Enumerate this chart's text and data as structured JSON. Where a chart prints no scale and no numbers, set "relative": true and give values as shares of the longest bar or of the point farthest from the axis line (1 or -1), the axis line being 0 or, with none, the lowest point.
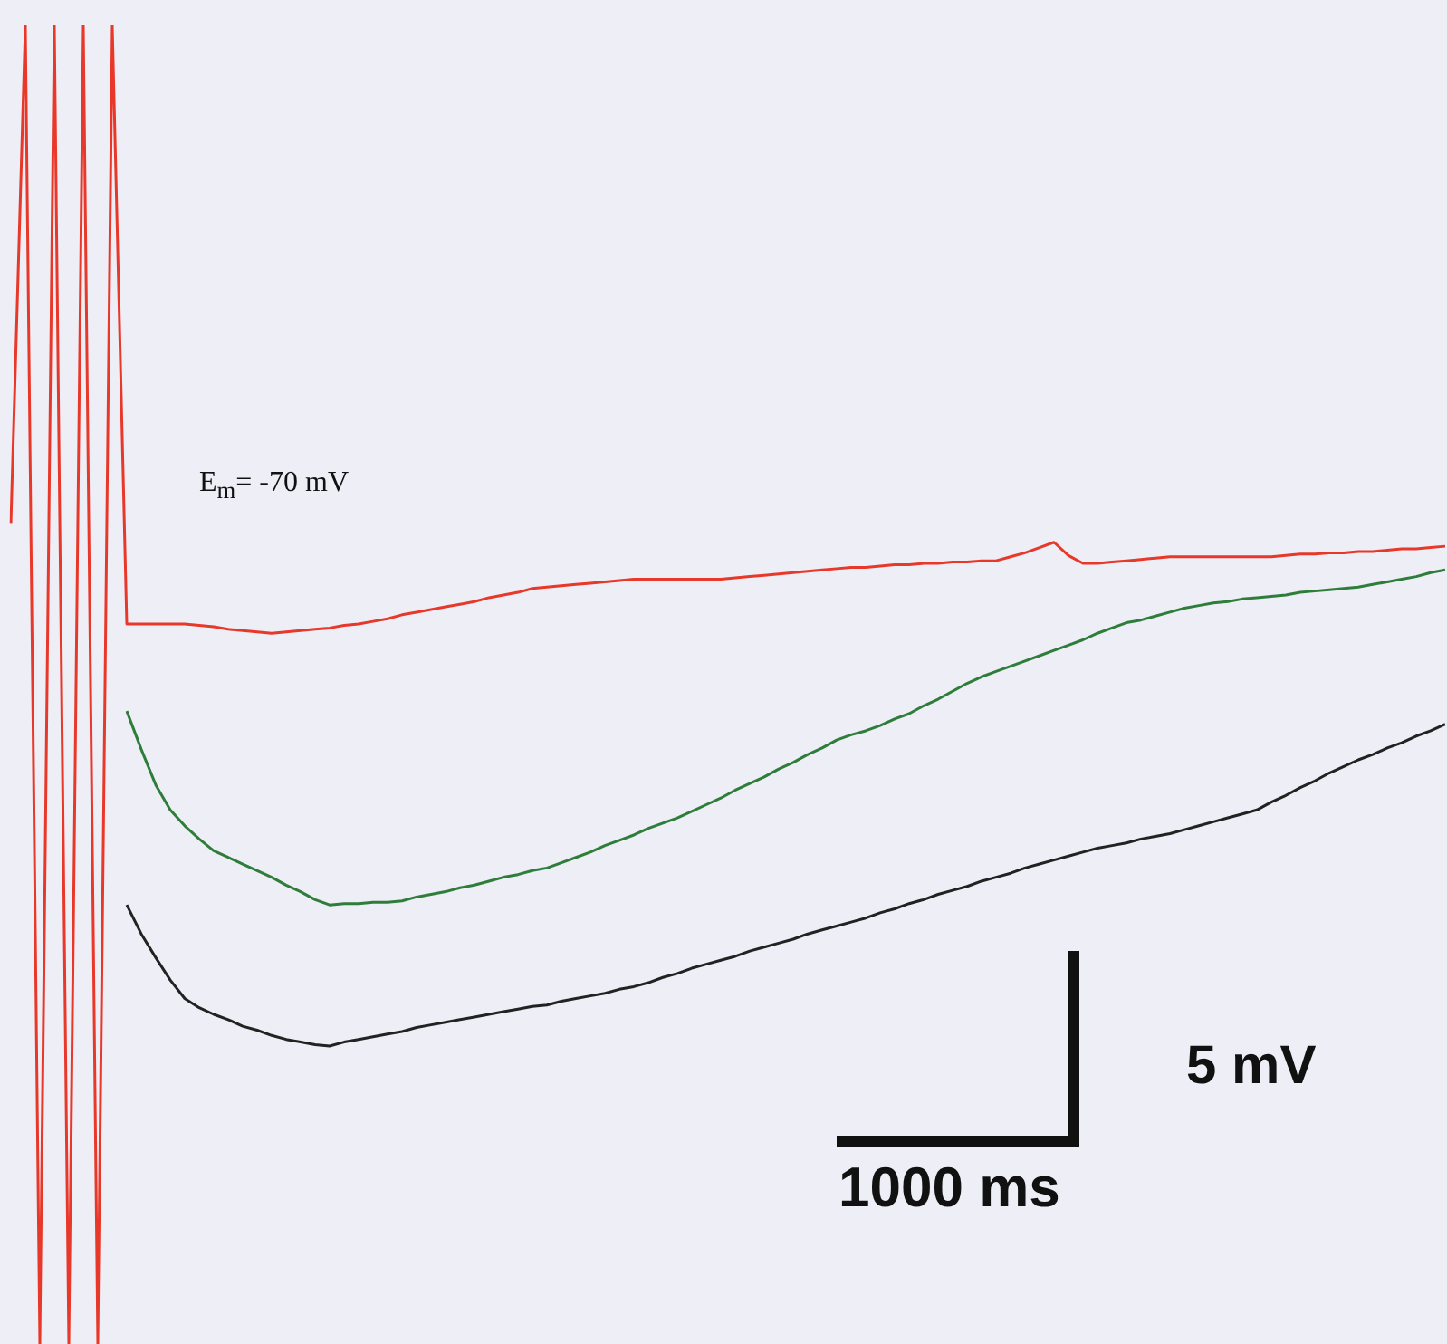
{
  "chart_data": {
    "type": "line",
    "relative": true,
    "marker": "none",
    "line_style": "solid",
    "categories": [
      null,
      null,
      null,
      null,
      null,
      null,
      null,
      null,
      null,
      null,
      null,
      null,
      null,
      null,
      null,
      null,
      null,
      null,
      null,
      null,
      null,
      null,
      null,
      null,
      null,
      null,
      null,
      null,
      null,
      null,
      null,
      null,
      null,
      null,
      null,
      null,
      null,
      null,
      null,
      null,
      null,
      null,
      null,
      null,
      null,
      null,
      null,
      null,
      null,
      null,
      null,
      null,
      null,
      null,
      null,
      null,
      null,
      null,
      null,
      null,
      null,
      null,
      null,
      null,
      null,
      null,
      null,
      null,
      null,
      null,
      null,
      null,
      null,
      null,
      null,
      null,
      null,
      null,
      null,
      null,
      null,
      null,
      null,
      null,
      null,
      null,
      null,
      null,
      null,
      null,
      null,
      null,
      null,
      null,
      null,
      null,
      null,
      null,
      null,
      null
    ],
    "annotations": [
      "E$_{m}$= -70 mV",
      "5 mV",
      "1000 ms"
    ],
    "series": [
      {
        "color": "#e8382a",
        "values": [
          0.622,
          1,
          0,
          1,
          0,
          1,
          0,
          1,
          0.546,
          0.546,
          0.546,
          0.546,
          0.546,
          0.545,
          0.544,
          0.542,
          0.541,
          0.54,
          0.539,
          0.54,
          0.541,
          0.542,
          0.543,
          0.545,
          0.546,
          0.548,
          0.55,
          0.553,
          0.555,
          0.557,
          0.559,
          0.561,
          0.563,
          0.566,
          0.568,
          0.57,
          0.573,
          0.574,
          0.575,
          0.576,
          0.577,
          0.578,
          0.579,
          0.58,
          0.58,
          0.58,
          0.58,
          0.58,
          0.58,
          0.58,
          0.581,
          0.582,
          0.583,
          0.584,
          0.585,
          0.586,
          0.587,
          0.588,
          0.589,
          0.589,
          0.59,
          0.591,
          0.591,
          0.592,
          0.592,
          0.593,
          0.593,
          0.594,
          0.594,
          0.597,
          0.6,
          0.604,
          0.608,
          0.598,
          0.592,
          0.592,
          0.593,
          0.594,
          0.595,
          0.596,
          0.597,
          0.597,
          0.597,
          0.597,
          0.597,
          0.597,
          0.597,
          0.597,
          0.598,
          0.599,
          0.599,
          0.6,
          0.6,
          0.601,
          0.601,
          0.602,
          0.603,
          0.603,
          0.604,
          0.605
        ]
      },
      {
        "color": "#2e7d3a",
        "values": [
          null,
          null,
          null,
          null,
          null,
          null,
          null,
          null,
          0.48,
          0.451,
          0.424,
          0.405,
          0.393,
          0.383,
          0.374,
          0.369,
          0.364,
          0.359,
          0.354,
          0.348,
          0.343,
          0.337,
          0.333,
          0.334,
          0.334,
          0.335,
          0.335,
          0.336,
          0.339,
          0.341,
          0.343,
          0.346,
          0.348,
          0.351,
          0.354,
          0.356,
          0.359,
          0.361,
          0.365,
          0.369,
          0.373,
          0.378,
          0.382,
          0.386,
          0.391,
          0.395,
          0.399,
          0.404,
          0.409,
          0.414,
          0.42,
          0.425,
          0.43,
          0.436,
          0.441,
          0.447,
          0.452,
          0.458,
          0.462,
          0.465,
          0.469,
          0.474,
          0.478,
          0.484,
          0.489,
          0.495,
          0.501,
          0.506,
          0.51,
          0.514,
          0.518,
          0.522,
          0.526,
          0.53,
          0.534,
          0.539,
          0.543,
          0.547,
          0.549,
          0.552,
          0.555,
          0.558,
          0.56,
          0.562,
          0.563,
          0.565,
          0.566,
          0.567,
          0.568,
          0.57,
          0.571,
          0.572,
          0.573,
          0.574,
          0.576,
          0.578,
          0.58,
          0.582,
          0.585,
          0.587
        ]
      },
      {
        "color": "#222222",
        "values": [
          null,
          null,
          null,
          null,
          null,
          null,
          null,
          null,
          0.333,
          0.311,
          0.293,
          0.276,
          0.262,
          0.255,
          0.25,
          0.246,
          0.241,
          0.238,
          0.234,
          0.231,
          0.229,
          0.227,
          0.226,
          0.229,
          0.231,
          0.233,
          0.235,
          0.237,
          0.24,
          0.242,
          0.244,
          0.246,
          0.248,
          0.25,
          0.252,
          0.254,
          0.256,
          0.257,
          0.26,
          0.262,
          0.264,
          0.266,
          0.269,
          0.271,
          0.274,
          0.278,
          0.281,
          0.285,
          0.288,
          0.291,
          0.294,
          0.298,
          0.301,
          0.304,
          0.307,
          0.311,
          0.314,
          0.317,
          0.32,
          0.323,
          0.327,
          0.33,
          0.334,
          0.337,
          0.341,
          0.344,
          0.347,
          0.351,
          0.354,
          0.357,
          0.361,
          0.364,
          0.367,
          0.37,
          0.373,
          0.376,
          0.378,
          0.38,
          0.383,
          0.385,
          0.387,
          0.39,
          0.393,
          0.396,
          0.399,
          0.402,
          0.405,
          0.411,
          0.416,
          0.422,
          0.427,
          0.433,
          0.438,
          0.443,
          0.447,
          0.452,
          0.456,
          0.461,
          0.465,
          0.47
        ]
      }
    ]
  }
}
